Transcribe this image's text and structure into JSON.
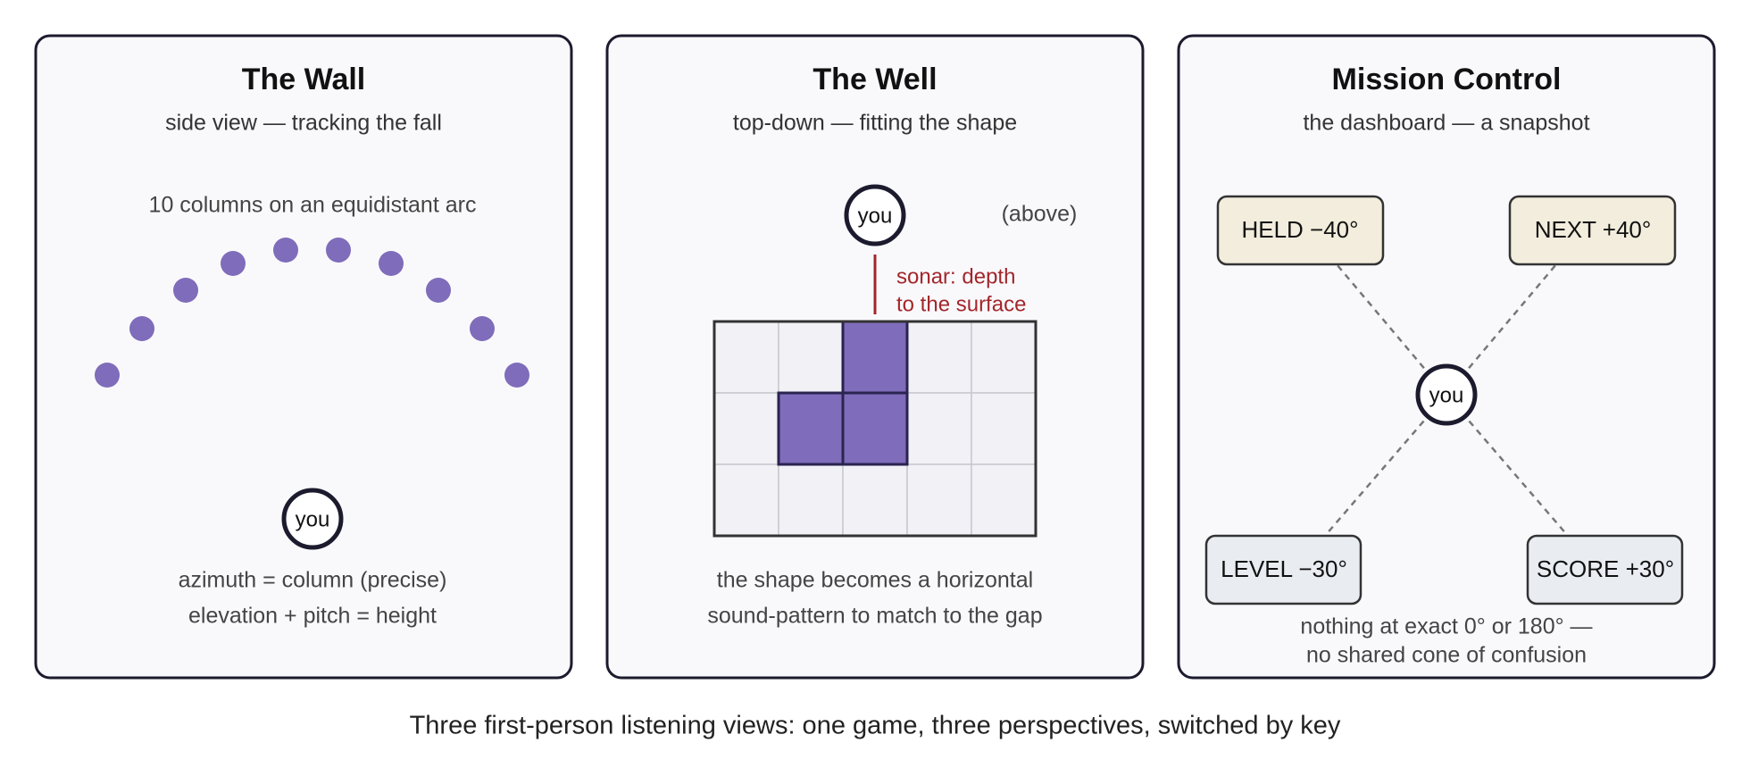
{
  "panels": [
    {
      "title": "The Wall",
      "subtitle": "side view — tracking the fall",
      "note": "10 columns on an equidistant arc",
      "you": "you",
      "lines": [
        "azimuth = column (precise)",
        "elevation + pitch = height"
      ]
    },
    {
      "title": "The Well",
      "subtitle": "top-down — fitting the shape",
      "you": "you",
      "above": "(above)",
      "sonar": [
        "sonar: depth",
        "to the surface"
      ],
      "lines": [
        "the shape becomes a horizontal",
        "sound-pattern to match to the gap"
      ]
    },
    {
      "title": "Mission Control",
      "subtitle": "the dashboard — a snapshot",
      "you": "you",
      "boxes": [
        "HELD −40°",
        "NEXT +40°",
        "LEVEL −30°",
        "SCORE +30°"
      ],
      "lines": [
        "nothing at exact 0° or 180° —",
        "no shared cone of confusion"
      ]
    }
  ],
  "caption": "Three first-person listening views: one game, three perspectives, switched by key"
}
